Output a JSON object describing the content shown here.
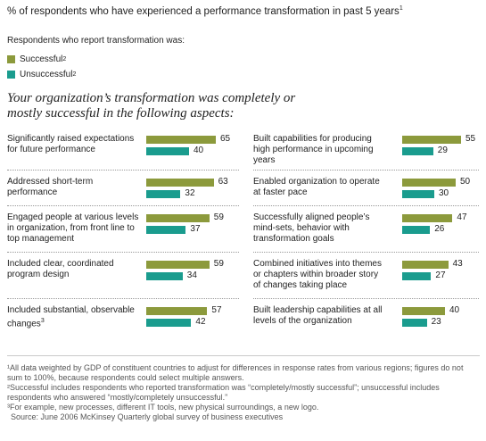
{
  "header": {
    "title": "% of respondents who have experienced a performance transformation in past 5 years",
    "title_sup": "1"
  },
  "legend": {
    "heading": "Respondents who report transformation was:",
    "items": [
      {
        "label": "Successful",
        "sup": "2",
        "color": "#8c9a3c"
      },
      {
        "label": "Unsuccessful",
        "sup": "2",
        "color": "#1a9c8e"
      }
    ]
  },
  "section_title": "Your organization’s transformation was completely or mostly successful in the following aspects:",
  "chart_data": {
    "type": "bar",
    "orientation": "horizontal",
    "series": [
      {
        "name": "Successful",
        "color": "#8c9a3c"
      },
      {
        "name": "Unsuccessful",
        "color": "#1a9c8e"
      }
    ],
    "xlim": [
      0,
      70
    ],
    "groups": [
      {
        "items": [
          {
            "label": "Significantly raised expectations for future performance",
            "successful": 65,
            "unsuccessful": 40
          },
          {
            "label": "Addressed short-term performance",
            "successful": 63,
            "unsuccessful": 32
          },
          {
            "label": "Engaged people at various levels in organization, from front line to top management",
            "successful": 59,
            "unsuccessful": 37
          },
          {
            "label": "Included clear, coordinated program design",
            "successful": 59,
            "unsuccessful": 34
          },
          {
            "label": "Included substantial, observable changes",
            "label_sup": "3",
            "successful": 57,
            "unsuccessful": 42
          }
        ]
      },
      {
        "items": [
          {
            "label": "Built capabilities for producing high performance in upcoming years",
            "successful": 55,
            "unsuccessful": 29
          },
          {
            "label": "Enabled organization to operate at faster pace",
            "successful": 50,
            "unsuccessful": 30
          },
          {
            "label": "Successfully aligned people’s mind-sets, behavior with transformation goals",
            "successful": 47,
            "unsuccessful": 26
          },
          {
            "label": "Combined initiatives into themes or chapters within broader story of changes taking place",
            "successful": 43,
            "unsuccessful": 27
          },
          {
            "label": "Built leadership capabilities at all levels of the organization",
            "successful": 40,
            "unsuccessful": 23
          }
        ]
      }
    ]
  },
  "footnotes": [
    "¹All data weighted by GDP of constituent countries to adjust for differences in response rates from various regions; figures do not sum to 100%, because respondents could select multiple answers.",
    "²Successful includes respondents who reported transformation was “completely/mostly successful”; unsuccessful includes respondents who answered “mostly/completely unsuccessful.”",
    "³For example, new processes, different IT tools, new physical surroundings, a new logo."
  ],
  "source": "Source: June 2006 McKinsey Quarterly global survey of business executives"
}
